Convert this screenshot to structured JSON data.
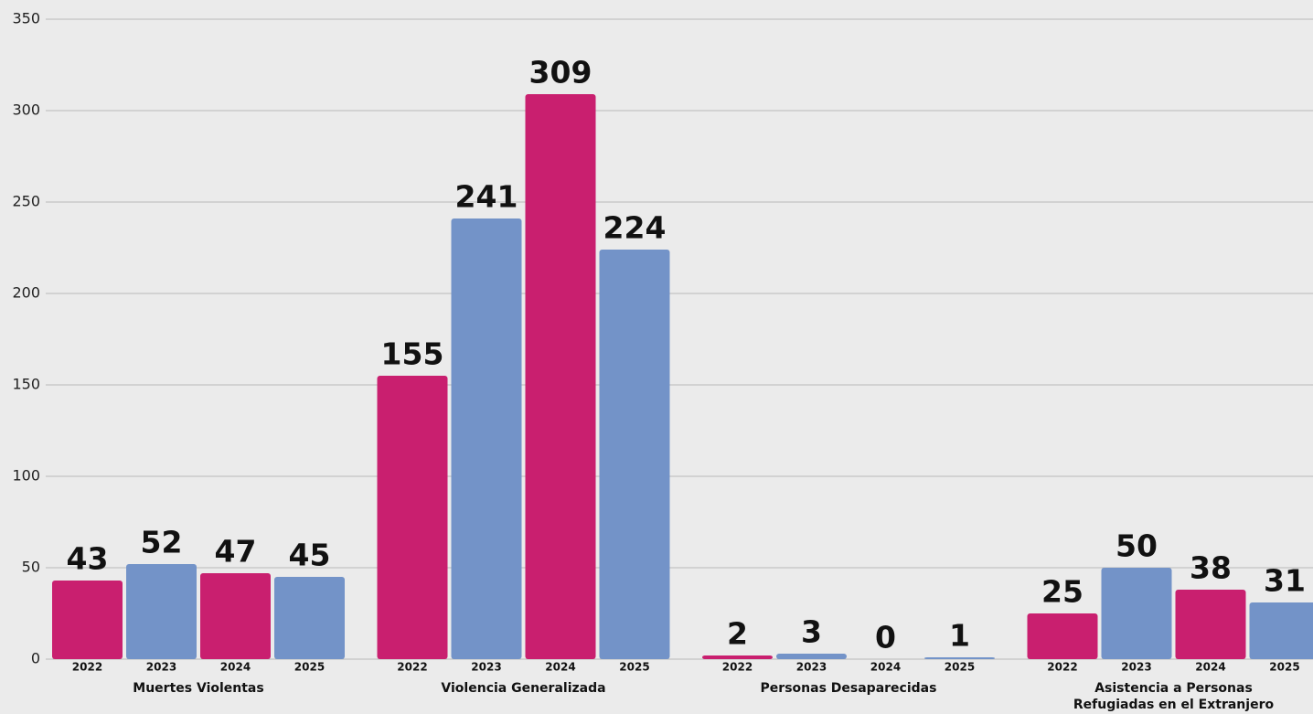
{
  "chart_data": {
    "type": "bar",
    "categories": [
      "Muertes Violentas",
      "Violencia Generalizada",
      "Personas Desaparecidas",
      "Asistencia a Personas Refugiadas en el Extranjero"
    ],
    "series": [
      {
        "name": "2022",
        "color": "#c91f6f",
        "values": [
          43,
          155,
          2,
          25
        ]
      },
      {
        "name": "2023",
        "color": "#7393c8",
        "values": [
          52,
          241,
          3,
          50
        ]
      },
      {
        "name": "2024",
        "color": "#c91f6f",
        "values": [
          47,
          309,
          0,
          38
        ]
      },
      {
        "name": "2025",
        "color": "#7393c8",
        "values": [
          45,
          224,
          1,
          31
        ]
      }
    ],
    "ylim": [
      0,
      350
    ],
    "yticks": [
      0,
      50,
      100,
      150,
      200,
      250,
      300,
      350
    ],
    "grid": true
  }
}
